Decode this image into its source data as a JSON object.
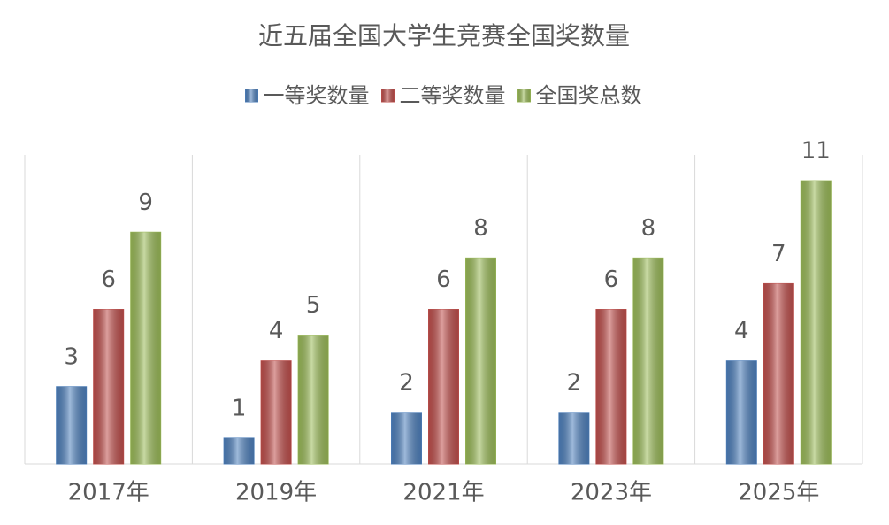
{
  "chart_data": {
    "type": "bar",
    "title": "近五届全国大学生竞赛全国奖数量",
    "categories": [
      "2017年",
      "2019年",
      "2021年",
      "2023年",
      "2025年"
    ],
    "series": [
      {
        "name": "一等奖数量",
        "color": "#4f81bd",
        "values": [
          3,
          1,
          2,
          2,
          4
        ]
      },
      {
        "name": "二等奖数量",
        "color": "#c0504d",
        "values": [
          6,
          4,
          6,
          6,
          7
        ]
      },
      {
        "name": "全国奖总数",
        "color": "#9bbb59",
        "values": [
          9,
          5,
          8,
          8,
          11
        ]
      }
    ],
    "ylim": [
      0,
      12
    ],
    "legend": "top"
  }
}
